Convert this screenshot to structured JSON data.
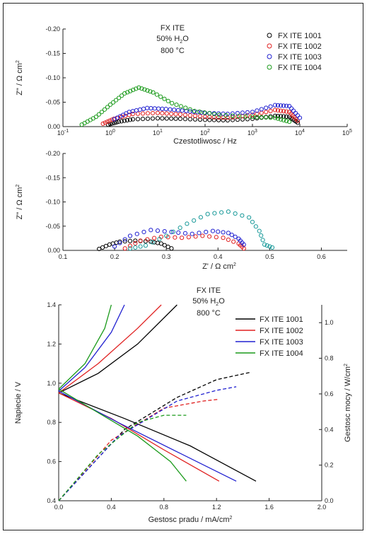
{
  "colors": {
    "s1001": "#000000",
    "s1002": "#e02020",
    "s1003": "#2020d0",
    "s1004": "#1a9a1a",
    "teal": "#1a9a9a"
  },
  "chart_data": [
    {
      "type": "scatter",
      "xscale": "log",
      "xlim": [
        0.1,
        100000
      ],
      "ylim": [
        0,
        -0.2
      ],
      "xlabel": "Czestotliwosc / Hz",
      "ylabel": "Z\" / Ω cm",
      "ylabel_sup": "2",
      "x_ticks": [
        {
          "v": 0.1,
          "b": "10",
          "e": "-1"
        },
        {
          "v": 1,
          "b": "10",
          "e": "0"
        },
        {
          "v": 10,
          "b": "10",
          "e": "1"
        },
        {
          "v": 100,
          "b": "10",
          "e": "2"
        },
        {
          "v": 1000,
          "b": "10",
          "e": "3"
        },
        {
          "v": 10000,
          "b": "10",
          "e": "4"
        },
        {
          "v": 100000,
          "b": "10",
          "e": "5"
        }
      ],
      "y_ticks": [
        "-0.20",
        "-0.15",
        "-0.10",
        "-0.05",
        "0.00"
      ],
      "y_tick_values": [
        -0.2,
        -0.15,
        -0.1,
        -0.05,
        0.0
      ],
      "annotation": {
        "line1": "FX ITE",
        "line2_a": "50% H",
        "line2_sub": "2",
        "line2_b": "O",
        "line3": "800 °C"
      },
      "legend_position": "top-right",
      "legend": [
        "FX ITE 1001",
        "FX ITE 1002",
        "FX ITE 1003",
        "FX ITE 1004"
      ],
      "series": [
        {
          "name": "FX ITE 1001",
          "color": "#000000",
          "points": [
            [
              0.9,
              -0.004
            ],
            [
              1.5,
              -0.01
            ],
            [
              3,
              -0.015
            ],
            [
              10,
              -0.017
            ],
            [
              30,
              -0.016
            ],
            [
              100,
              -0.014
            ],
            [
              300,
              -0.013
            ],
            [
              1000,
              -0.016
            ],
            [
              3000,
              -0.022
            ],
            [
              6000,
              -0.02
            ],
            [
              9000,
              -0.008
            ]
          ]
        },
        {
          "name": "FX ITE 1002",
          "color": "#e02020",
          "points": [
            [
              0.7,
              -0.006
            ],
            [
              1.2,
              -0.016
            ],
            [
              3,
              -0.026
            ],
            [
              10,
              -0.028
            ],
            [
              30,
              -0.025
            ],
            [
              100,
              -0.02
            ],
            [
              300,
              -0.018
            ],
            [
              1000,
              -0.024
            ],
            [
              3000,
              -0.034
            ],
            [
              6000,
              -0.03
            ],
            [
              9000,
              -0.012
            ]
          ]
        },
        {
          "name": "FX ITE 1003",
          "color": "#2020d0",
          "points": [
            [
              1.2,
              -0.015
            ],
            [
              2.5,
              -0.03
            ],
            [
              6,
              -0.038
            ],
            [
              15,
              -0.036
            ],
            [
              40,
              -0.032
            ],
            [
              100,
              -0.028
            ],
            [
              300,
              -0.026
            ],
            [
              1000,
              -0.03
            ],
            [
              3000,
              -0.044
            ],
            [
              6000,
              -0.042
            ],
            [
              10000,
              -0.018
            ]
          ]
        },
        {
          "name": "FX ITE 1004",
          "color": "#1a9a1a",
          "points": [
            [
              0.25,
              -0.004
            ],
            [
              0.5,
              -0.02
            ],
            [
              1,
              -0.045
            ],
            [
              2,
              -0.068
            ],
            [
              4,
              -0.08
            ],
            [
              8,
              -0.07
            ],
            [
              20,
              -0.048
            ],
            [
              60,
              -0.032
            ],
            [
              200,
              -0.024
            ],
            [
              1000,
              -0.02
            ],
            [
              3000,
              -0.018
            ],
            [
              6000,
              -0.01
            ]
          ]
        }
      ]
    },
    {
      "type": "scatter",
      "xlim": [
        0.1,
        0.65
      ],
      "ylim": [
        0,
        -0.2
      ],
      "xlabel": "Z' / Ω cm",
      "xlabel_sup": "2",
      "ylabel": "Z\" / Ω cm",
      "ylabel_sup": "2",
      "x_ticks": [
        "0.1",
        "0.2",
        "0.3",
        "0.4",
        "0.5",
        "0.6"
      ],
      "x_tick_values": [
        0.1,
        0.2,
        0.3,
        0.4,
        0.5,
        0.6
      ],
      "y_ticks": [
        "-0.20",
        "-0.15",
        "-0.10",
        "-0.05",
        "0.00"
      ],
      "y_tick_values": [
        -0.2,
        -0.15,
        -0.1,
        -0.05,
        0.0
      ],
      "series": [
        {
          "name": "FX ITE 1001",
          "color": "#000000",
          "points": [
            [
              0.17,
              -0.003
            ],
            [
              0.19,
              -0.012
            ],
            [
              0.21,
              -0.018
            ],
            [
              0.24,
              -0.02
            ],
            [
              0.27,
              -0.018
            ],
            [
              0.29,
              -0.014
            ],
            [
              0.31,
              -0.004
            ]
          ]
        },
        {
          "name": "FX ITE 1002",
          "color": "#e02020",
          "points": [
            [
              0.22,
              -0.004
            ],
            [
              0.25,
              -0.02
            ],
            [
              0.29,
              -0.028
            ],
            [
              0.33,
              -0.026
            ],
            [
              0.37,
              -0.03
            ],
            [
              0.41,
              -0.026
            ],
            [
              0.44,
              -0.014
            ],
            [
              0.45,
              -0.004
            ]
          ]
        },
        {
          "name": "FX ITE 1003",
          "color": "#2020d0",
          "points": [
            [
              0.2,
              -0.008
            ],
            [
              0.23,
              -0.03
            ],
            [
              0.27,
              -0.042
            ],
            [
              0.31,
              -0.038
            ],
            [
              0.35,
              -0.034
            ],
            [
              0.39,
              -0.04
            ],
            [
              0.42,
              -0.036
            ],
            [
              0.44,
              -0.024
            ],
            [
              0.45,
              -0.012
            ]
          ]
        },
        {
          "name": "FX ITE 1004",
          "color": "#1a9a9a",
          "points": [
            [
              0.23,
              -0.004
            ],
            [
              0.26,
              -0.01
            ],
            [
              0.3,
              -0.03
            ],
            [
              0.34,
              -0.055
            ],
            [
              0.38,
              -0.075
            ],
            [
              0.42,
              -0.08
            ],
            [
              0.46,
              -0.068
            ],
            [
              0.48,
              -0.04
            ],
            [
              0.49,
              -0.012
            ],
            [
              0.505,
              -0.006
            ]
          ]
        }
      ]
    },
    {
      "type": "line",
      "xlim": [
        0,
        2.0
      ],
      "ylim": [
        0.4,
        1.4
      ],
      "y2lim": [
        0,
        1.1
      ],
      "xlabel": "Gestosc pradu / mA/cm",
      "xlabel_sup": "2",
      "ylabel": "Napiecie / V",
      "y2label": "Gestosc mocy / W/cm",
      "y2label_sup": "2",
      "x_ticks": [
        "0.0",
        "0.4",
        "0.8",
        "1.2",
        "1.6",
        "2.0"
      ],
      "x_tick_values": [
        0,
        0.4,
        0.8,
        1.2,
        1.6,
        2.0
      ],
      "y_ticks": [
        "0.4",
        "0.6",
        "0.8",
        "1.0",
        "1.2",
        "1.4"
      ],
      "y_tick_values": [
        0.4,
        0.6,
        0.8,
        1.0,
        1.2,
        1.4
      ],
      "y2_ticks": [
        "0.0",
        "0.2",
        "0.4",
        "0.6",
        "0.8",
        "1.0"
      ],
      "y2_tick_values": [
        0,
        0.2,
        0.4,
        0.6,
        0.8,
        1.0
      ],
      "annotation": {
        "line1": "FX ITE",
        "line2_a": "50% H",
        "line2_sub": "2",
        "line2_b": "O",
        "line3": "800 °C"
      },
      "legend_position": "top-right",
      "legend": [
        "FX ITE 1001",
        "FX ITE 1002",
        "FX ITE 1003",
        "FX ITE 1004"
      ],
      "series": [
        {
          "name": "FX ITE 1001",
          "color": "#000000",
          "voltage_up": [
            [
              0,
              0.95
            ],
            [
              0.3,
              1.05
            ],
            [
              0.6,
              1.2
            ],
            [
              0.9,
              1.4
            ]
          ],
          "voltage_down": [
            [
              0,
              0.95
            ],
            [
              0.5,
              0.82
            ],
            [
              1.0,
              0.68
            ],
            [
              1.5,
              0.5
            ]
          ],
          "power": [
            [
              0,
              0
            ],
            [
              0.5,
              0.4
            ],
            [
              0.9,
              0.58
            ],
            [
              1.2,
              0.68
            ],
            [
              1.45,
              0.72
            ]
          ]
        },
        {
          "name": "FX ITE 1002",
          "color": "#e02020",
          "voltage_up": [
            [
              0,
              0.95
            ],
            [
              0.3,
              1.1
            ],
            [
              0.6,
              1.28
            ],
            [
              0.78,
              1.4
            ]
          ],
          "voltage_down": [
            [
              0,
              0.95
            ],
            [
              0.4,
              0.82
            ],
            [
              0.8,
              0.66
            ],
            [
              1.22,
              0.5
            ]
          ],
          "power": [
            [
              0,
              0
            ],
            [
              0.4,
              0.34
            ],
            [
              0.8,
              0.52
            ],
            [
              1.1,
              0.56
            ],
            [
              1.22,
              0.57
            ]
          ]
        },
        {
          "name": "FX ITE 1003",
          "color": "#2020d0",
          "voltage_up": [
            [
              0,
              0.96
            ],
            [
              0.2,
              1.08
            ],
            [
              0.4,
              1.26
            ],
            [
              0.5,
              1.4
            ]
          ],
          "voltage_down": [
            [
              0,
              0.96
            ],
            [
              0.45,
              0.8
            ],
            [
              0.9,
              0.65
            ],
            [
              1.35,
              0.5
            ]
          ],
          "power": [
            [
              0,
              0
            ],
            [
              0.45,
              0.36
            ],
            [
              0.9,
              0.56
            ],
            [
              1.2,
              0.62
            ],
            [
              1.35,
              0.64
            ]
          ]
        },
        {
          "name": "FX ITE 1004",
          "color": "#1a9a1a",
          "voltage_up": [
            [
              0,
              0.97
            ],
            [
              0.2,
              1.1
            ],
            [
              0.35,
              1.28
            ],
            [
              0.4,
              1.4
            ]
          ],
          "voltage_down": [
            [
              0,
              0.97
            ],
            [
              0.3,
              0.85
            ],
            [
              0.6,
              0.73
            ],
            [
              0.85,
              0.6
            ],
            [
              0.97,
              0.5
            ]
          ],
          "power": [
            [
              0,
              0
            ],
            [
              0.3,
              0.26
            ],
            [
              0.6,
              0.44
            ],
            [
              0.8,
              0.48
            ],
            [
              0.97,
              0.48
            ]
          ]
        }
      ]
    }
  ]
}
